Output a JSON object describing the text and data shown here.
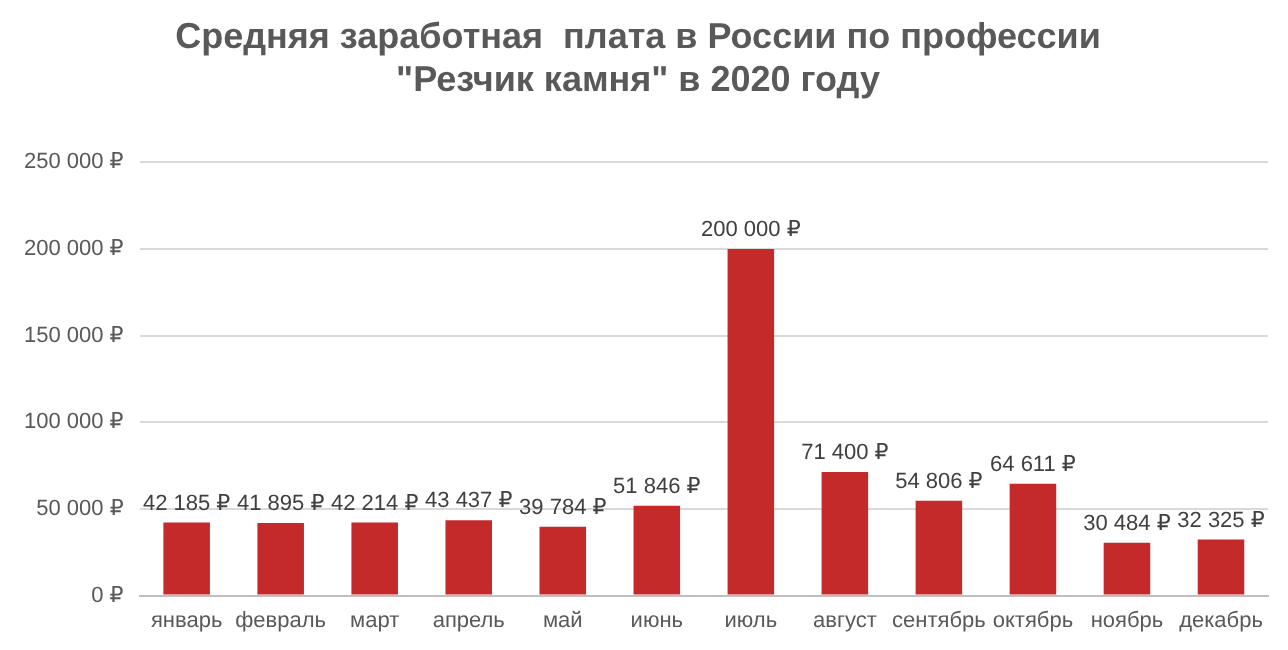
{
  "chart_data": {
    "type": "bar",
    "title": "Средняя заработная  плата в России по профессии\n\"Резчик камня\" в 2020 году",
    "categories": [
      "январь",
      "февраль",
      "март",
      "апрель",
      "май",
      "июнь",
      "июль",
      "август",
      "сентябрь",
      "октябрь",
      "ноябрь",
      "декабрь"
    ],
    "values": [
      42185,
      41895,
      42214,
      43437,
      39784,
      51846,
      200000,
      71400,
      54806,
      64611,
      30484,
      32325
    ],
    "value_labels": [
      "42 185 ₽",
      "41 895 ₽",
      "42 214 ₽",
      "43 437 ₽",
      "39 784 ₽",
      "51 846 ₽",
      "200 000 ₽",
      "71 400 ₽",
      "54 806 ₽",
      "64 611 ₽",
      "30 484 ₽",
      "32 325 ₽"
    ],
    "color": "#c42a2a",
    "ylim": [
      0,
      250000
    ],
    "yticks": [
      {
        "value": 0,
        "label": "0 ₽"
      },
      {
        "value": 50000,
        "label": "50 000 ₽"
      },
      {
        "value": 100000,
        "label": "100 000 ₽"
      },
      {
        "value": 150000,
        "label": "150 000 ₽"
      },
      {
        "value": 200000,
        "label": "200 000 ₽"
      },
      {
        "value": 250000,
        "label": "250 000 ₽"
      }
    ],
    "grid": "y",
    "legend": false
  }
}
